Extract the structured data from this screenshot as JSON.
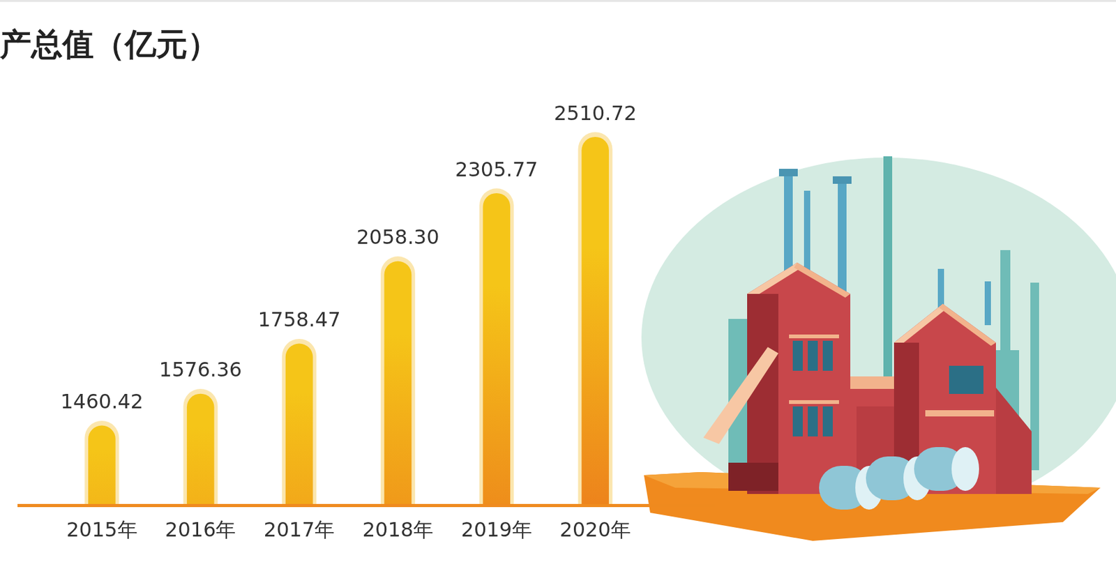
{
  "chart_data": {
    "type": "bar",
    "title": "产总值（亿元）",
    "categories": [
      "2015年",
      "2016年",
      "2017年",
      "2018年",
      "2019年",
      "2020年"
    ],
    "values": [
      1460.42,
      1576.36,
      1758.47,
      2058.3,
      2305.77,
      2510.72
    ],
    "value_labels": [
      "1460.42",
      "1576.36",
      "1758.47",
      "2058.30",
      "2305.77",
      "2510.72"
    ],
    "color": "#f5c518",
    "ylim": [
      1170,
      2700
    ],
    "grid": false,
    "data_labels": true,
    "tick_labels": "x"
  }
}
